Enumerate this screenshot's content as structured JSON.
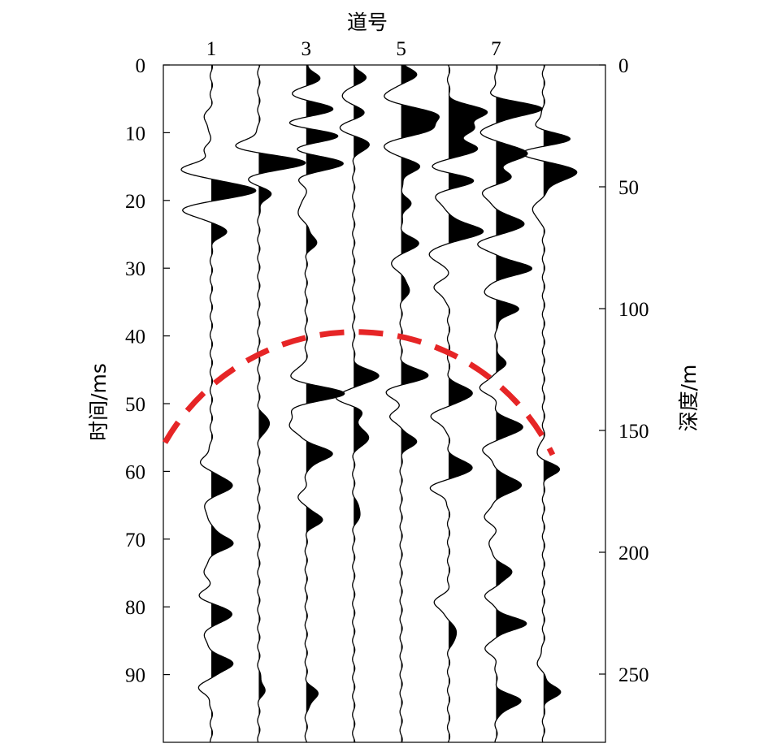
{
  "chart_data": {
    "type": "seismic-wiggle",
    "title": "道号",
    "xlabel": "道号",
    "ylabel_left": "时间/ms",
    "ylabel_right": "深度/m",
    "x_tick_labels": [
      "1",
      "3",
      "5",
      "7"
    ],
    "x_ticks": [
      1,
      3,
      5,
      7
    ],
    "trace_count": 8,
    "ylim_time_ms": [
      0,
      100
    ],
    "yticks_time_ms": [
      0,
      10,
      20,
      30,
      40,
      50,
      60,
      70,
      80,
      90
    ],
    "ylim_depth_m": [
      0,
      278
    ],
    "yticks_depth_m": [
      0,
      50,
      100,
      150,
      200,
      250
    ],
    "fill": "positive lobes filled black",
    "traces": [
      {
        "trace": 1,
        "events": [
          [
            8,
            -0.25
          ],
          [
            12.5,
            -0.2
          ],
          [
            15.5,
            -1.0
          ],
          [
            18.5,
            1.55
          ],
          [
            21.5,
            -1.0
          ],
          [
            24.5,
            0.5
          ],
          [
            58.5,
            -0.35
          ],
          [
            62,
            0.75
          ],
          [
            65.5,
            -0.25
          ],
          [
            70.5,
            0.75
          ],
          [
            74.5,
            -0.25
          ],
          [
            78.5,
            -0.4
          ],
          [
            81,
            0.75
          ],
          [
            84.5,
            -0.25
          ],
          [
            88.5,
            0.75
          ],
          [
            92,
            -0.4
          ]
        ]
      },
      {
        "trace": 2,
        "events": [
          [
            12,
            -0.8
          ],
          [
            14.5,
            1.7
          ],
          [
            16.5,
            -0.5
          ],
          [
            19,
            0.4
          ],
          [
            53,
            0.4
          ],
          [
            92,
            0.2
          ]
        ]
      },
      {
        "trace": 3,
        "events": [
          [
            2,
            0.45
          ],
          [
            4.5,
            -0.6
          ],
          [
            6.5,
            1.1
          ],
          [
            8.5,
            -0.8
          ],
          [
            10.5,
            1.2
          ],
          [
            12.5,
            -0.6
          ],
          [
            14.5,
            1.4
          ],
          [
            16.5,
            -0.3
          ],
          [
            21.5,
            -0.3
          ],
          [
            26,
            0.35
          ],
          [
            46,
            -0.6
          ],
          [
            48.5,
            1.3
          ],
          [
            51,
            -0.55
          ],
          [
            53.5,
            -0.55
          ],
          [
            57.5,
            0.9
          ],
          [
            64,
            -0.25
          ],
          [
            67,
            0.55
          ],
          [
            93,
            0.4
          ]
        ]
      },
      {
        "trace": 4,
        "events": [
          [
            2,
            0.4
          ],
          [
            4.5,
            -0.45
          ],
          [
            7,
            0.35
          ],
          [
            9.5,
            -0.55
          ],
          [
            11.5,
            0.6
          ],
          [
            46,
            0.85
          ],
          [
            49,
            -0.6
          ],
          [
            51.5,
            0.3
          ],
          [
            55,
            0.55
          ],
          [
            66,
            0.25
          ]
        ]
      },
      {
        "trace": 5,
        "events": [
          [
            1.5,
            0.5
          ],
          [
            4.5,
            -0.6
          ],
          [
            7.5,
            1.2
          ],
          [
            9.5,
            0.9
          ],
          [
            12,
            -0.65
          ],
          [
            15,
            0.6
          ],
          [
            20.5,
            0.3
          ],
          [
            26.5,
            0.6
          ],
          [
            29,
            -0.35
          ],
          [
            33,
            0.3
          ],
          [
            46,
            1.0
          ],
          [
            48,
            -0.6
          ],
          [
            52,
            -0.35
          ],
          [
            55.5,
            0.5
          ]
        ]
      },
      {
        "trace": 6,
        "events": [
          [
            7,
            1.3
          ],
          [
            9.5,
            0.8
          ],
          [
            12.5,
            1.0
          ],
          [
            15,
            -0.7
          ],
          [
            17,
            0.9
          ],
          [
            19.5,
            -0.5
          ],
          [
            24.5,
            1.2
          ],
          [
            28,
            -0.7
          ],
          [
            33,
            -0.5
          ],
          [
            48.5,
            0.85
          ],
          [
            52,
            -0.6
          ],
          [
            59.5,
            0.85
          ],
          [
            62.5,
            -0.6
          ],
          [
            79.5,
            -0.5
          ],
          [
            84,
            0.3
          ]
        ]
      },
      {
        "trace": 7,
        "events": [
          [
            4.5,
            -0.25
          ],
          [
            6.5,
            1.6
          ],
          [
            10,
            -0.5
          ],
          [
            13,
            1.1
          ],
          [
            16.5,
            0.5
          ],
          [
            19,
            -0.5
          ],
          [
            23.5,
            1.0
          ],
          [
            26.5,
            -0.6
          ],
          [
            30,
            1.2
          ],
          [
            33.5,
            -0.45
          ],
          [
            36,
            0.75
          ],
          [
            44,
            0.3
          ],
          [
            47.5,
            -0.55
          ],
          [
            53.5,
            0.95
          ],
          [
            57,
            -0.45
          ],
          [
            62,
            0.9
          ],
          [
            66.5,
            -0.4
          ],
          [
            71,
            -0.25
          ],
          [
            75,
            0.55
          ],
          [
            78.5,
            -0.35
          ],
          [
            82.5,
            1.0
          ],
          [
            86,
            -0.35
          ],
          [
            94,
            0.85
          ]
        ]
      },
      {
        "trace": 8,
        "events": [
          [
            9,
            -0.35
          ],
          [
            11,
            1.0
          ],
          [
            13,
            -0.9
          ],
          [
            15.5,
            1.0
          ],
          [
            17,
            0.4
          ],
          [
            21.5,
            -0.4
          ],
          [
            59.5,
            0.55
          ],
          [
            57.5,
            -0.3
          ],
          [
            92.5,
            0.55
          ],
          [
            88,
            -0.2
          ]
        ]
      }
    ],
    "annotations": [
      {
        "type": "dashed-arc",
        "color": "#e62526",
        "description": "circle crossing traces at ~44–56 ms"
      }
    ]
  }
}
